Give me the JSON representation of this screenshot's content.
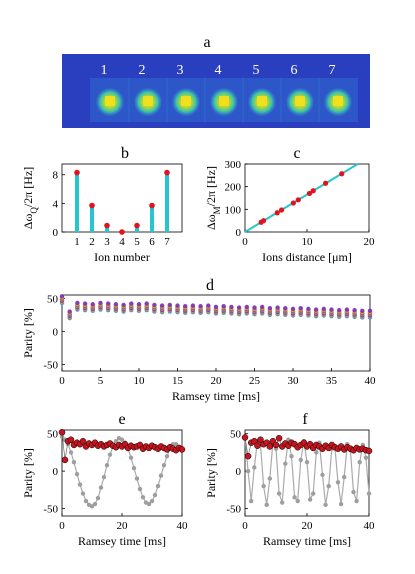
{
  "panel_letters": [
    "a",
    "b",
    "c",
    "d",
    "e",
    "f"
  ],
  "colors": {
    "cyan": "#26c6d0",
    "red": "#e0141e",
    "dark_red_fill": "#c8141e",
    "gray": "#aaaaaa",
    "image_bg": "#2a3fbf"
  },
  "chart_data": [
    {
      "panel": "a",
      "type": "image",
      "ion_labels": [
        "1",
        "2",
        "3",
        "4",
        "5",
        "6",
        "7"
      ]
    },
    {
      "panel": "b",
      "type": "bar",
      "ylabel": "Δω_Q/2π [Hz]",
      "xlabel": "Ion number",
      "categories": [
        "1",
        "2",
        "3",
        "4",
        "5",
        "6",
        "7"
      ],
      "values": [
        8.3,
        3.7,
        0.9,
        0.0,
        0.9,
        3.7,
        8.3
      ],
      "ylim": [
        0,
        9.5
      ],
      "yticks": [
        0,
        4,
        8
      ],
      "grid": false
    },
    {
      "panel": "c",
      "type": "scatter",
      "ylabel": "Δω_M/2π [Hz]",
      "xlabel": "Ions distance [μm]",
      "xlim": [
        0,
        20
      ],
      "ylim": [
        0,
        300
      ],
      "xticks": [
        0,
        10,
        20
      ],
      "yticks": [
        0,
        100,
        200,
        300
      ],
      "fit_line": {
        "x": [
          0,
          20
        ],
        "y": [
          0,
          330
        ]
      },
      "points": {
        "x": [
          2.6,
          3.0,
          5.2,
          5.9,
          7.8,
          8.6,
          10.4,
          11.0,
          13.0,
          15.6
        ],
        "y": [
          43,
          50,
          85,
          97,
          128,
          142,
          170,
          182,
          215,
          257
        ]
      }
    },
    {
      "panel": "d",
      "type": "scatter",
      "ylabel": "Parity [%]",
      "xlabel": "Ramsey time [ms]",
      "xlim": [
        0,
        40
      ],
      "ylim": [
        -60,
        55
      ],
      "xticks": [
        0,
        5,
        10,
        15,
        20,
        25,
        30,
        35,
        40
      ],
      "yticks": [
        -50,
        0,
        50
      ],
      "series_colors": [
        "#1d9ad6",
        "#e88a1a",
        "#8a2be2",
        "#6aa84f",
        "#d63a8c",
        "#c9b21c",
        "#7b2fbe"
      ],
      "x": [
        0,
        1,
        2,
        3,
        4,
        5,
        6,
        7,
        8,
        9,
        10,
        11,
        12,
        13,
        14,
        15,
        16,
        17,
        18,
        19,
        20,
        21,
        22,
        23,
        24,
        25,
        26,
        27,
        28,
        29,
        30,
        31,
        32,
        33,
        34,
        35,
        36,
        37,
        38,
        39,
        40
      ],
      "center": [
        48,
        25,
        38,
        37,
        36,
        38,
        37,
        36,
        35,
        37,
        36,
        37,
        35,
        34,
        35,
        34,
        33,
        34,
        33,
        34,
        32,
        33,
        32,
        31,
        32,
        31,
        32,
        30,
        31,
        30,
        29,
        30,
        29,
        28,
        29,
        28,
        27,
        28,
        27,
        26,
        26
      ],
      "spread": 5
    },
    {
      "panel": "e",
      "type": "line",
      "ylabel": "Parity [%]",
      "xlabel": "Ramsey time [ms]",
      "xlim": [
        0,
        40
      ],
      "ylim": [
        -60,
        55
      ],
      "xticks": [
        0,
        20,
        40
      ],
      "yticks": [
        -50,
        0,
        50
      ],
      "series": [
        {
          "role": "red",
          "x": [
            0,
            1,
            2,
            3,
            4,
            5,
            6,
            7,
            8,
            9,
            10,
            11,
            12,
            13,
            14,
            15,
            16,
            17,
            18,
            19,
            20,
            21,
            22,
            23,
            24,
            25,
            26,
            27,
            28,
            29,
            30,
            31,
            32,
            33,
            34,
            35,
            36,
            37,
            38,
            39,
            40
          ],
          "values": [
            52,
            15,
            40,
            42,
            35,
            38,
            36,
            40,
            33,
            37,
            35,
            38,
            34,
            36,
            33,
            35,
            37,
            34,
            32,
            35,
            33,
            36,
            31,
            34,
            32,
            33,
            35,
            30,
            33,
            31,
            34,
            32,
            30,
            33,
            31,
            29,
            32,
            30,
            28,
            31,
            29
          ]
        },
        {
          "role": "gray",
          "x": [
            0,
            1,
            2,
            3,
            4,
            5,
            6,
            7,
            8,
            9,
            10,
            11,
            12,
            13,
            14,
            15,
            16,
            17,
            18,
            19,
            20,
            21,
            22,
            23,
            24,
            25,
            26,
            27,
            28,
            29,
            30,
            31,
            32,
            33,
            34,
            35,
            36,
            37,
            38,
            39,
            40
          ],
          "values": [
            46,
            42,
            36,
            25,
            12,
            -4,
            -18,
            -30,
            -40,
            -45,
            -47,
            -44,
            -36,
            -22,
            -8,
            8,
            22,
            33,
            40,
            44,
            42,
            38,
            30,
            18,
            4,
            -10,
            -24,
            -35,
            -42,
            -44,
            -40,
            -32,
            -20,
            -6,
            8,
            20,
            30,
            36,
            36,
            32,
            28
          ]
        }
      ]
    },
    {
      "panel": "f",
      "type": "line",
      "ylabel": "Parity [%]",
      "xlabel": "Ramsey time [ms]",
      "xlim": [
        0,
        40
      ],
      "ylim": [
        -60,
        55
      ],
      "xticks": [
        0,
        20,
        40
      ],
      "yticks": [
        -50,
        0,
        50
      ],
      "series": [
        {
          "role": "red",
          "x": [
            0,
            1,
            2,
            3,
            4,
            5,
            6,
            7,
            8,
            9,
            10,
            11,
            12,
            13,
            14,
            15,
            16,
            17,
            18,
            19,
            20,
            21,
            22,
            23,
            24,
            25,
            26,
            27,
            28,
            29,
            30,
            31,
            32,
            33,
            34,
            35,
            36,
            37,
            38,
            39,
            40
          ],
          "values": [
            45,
            20,
            38,
            40,
            34,
            42,
            36,
            38,
            33,
            40,
            35,
            44,
            33,
            37,
            34,
            38,
            36,
            32,
            35,
            38,
            33,
            36,
            31,
            35,
            33,
            30,
            34,
            31,
            35,
            32,
            30,
            33,
            29,
            32,
            30,
            28,
            31,
            29,
            30,
            28,
            27
          ]
        },
        {
          "role": "gray",
          "x": [
            0,
            1,
            2,
            3,
            4,
            5,
            6,
            7,
            8,
            9,
            10,
            11,
            12,
            13,
            14,
            15,
            16,
            17,
            18,
            19,
            20,
            21,
            22,
            23,
            24,
            25,
            26,
            27,
            28,
            29,
            30,
            31,
            32,
            33,
            34,
            35,
            36,
            37,
            38,
            39,
            40
          ],
          "values": [
            45,
            0,
            -40,
            5,
            40,
            35,
            -20,
            -45,
            -10,
            38,
            30,
            -30,
            -42,
            10,
            42,
            20,
            -35,
            -40,
            15,
            40,
            12,
            -38,
            -30,
            25,
            38,
            -5,
            -45,
            -20,
            30,
            32,
            -15,
            -44,
            -8,
            36,
            28,
            -28,
            -40,
            12,
            35,
            18,
            -30
          ]
        }
      ]
    }
  ]
}
